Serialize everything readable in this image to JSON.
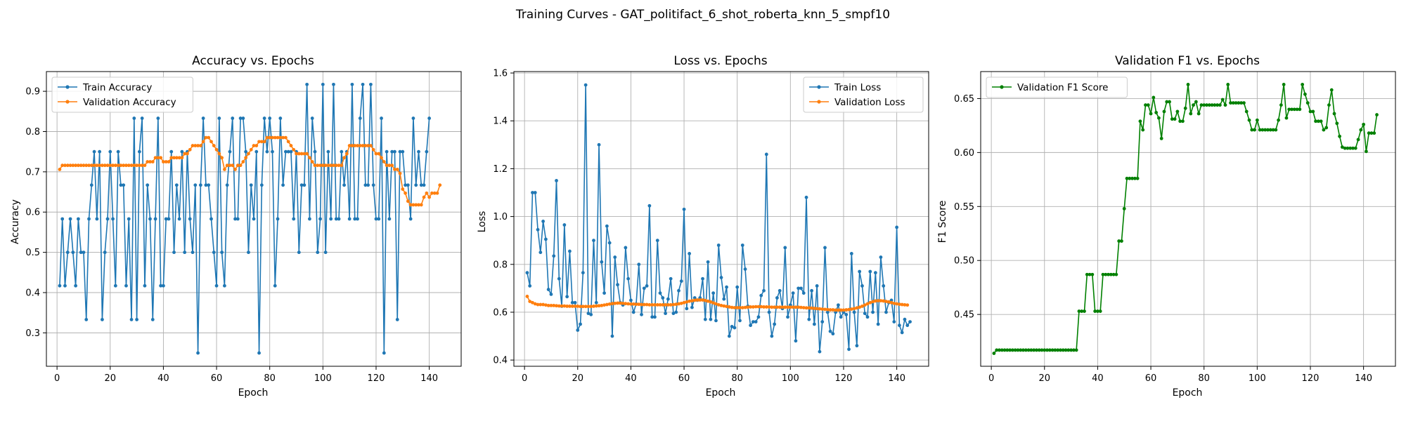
{
  "figure": {
    "suptitle": "Training Curves - GAT_politifact_6_shot_roberta_knn_5_smpf10"
  },
  "colors": {
    "blue": "#1f77b4",
    "orange": "#ff7f0e",
    "green": "#008000",
    "grid": "#b0b0b0"
  },
  "chart_data": [
    {
      "type": "line",
      "title": "Accuracy vs. Epochs",
      "xlabel": "Epoch",
      "ylabel": "Accuracy",
      "xlim": [
        -4,
        152
      ],
      "ylim": [
        0.217,
        0.949
      ],
      "xticks": [
        0,
        20,
        40,
        60,
        80,
        100,
        120,
        140
      ],
      "yticks": [
        0.3,
        0.4,
        0.5,
        0.6,
        0.7,
        0.8,
        0.9
      ],
      "ytick_decimals": 1,
      "grid": true,
      "legend": "upper left",
      "series": [
        {
          "name": "Train Accuracy",
          "color": "#1f77b4",
          "x_start": 1,
          "values": [
            0.417,
            0.583,
            0.417,
            0.5,
            0.583,
            0.5,
            0.417,
            0.583,
            0.5,
            0.5,
            0.333,
            0.583,
            0.667,
            0.75,
            0.583,
            0.75,
            0.333,
            0.5,
            0.583,
            0.75,
            0.583,
            0.417,
            0.75,
            0.667,
            0.667,
            0.417,
            0.583,
            0.333,
            0.833,
            0.333,
            0.75,
            0.833,
            0.417,
            0.667,
            0.583,
            0.333,
            0.583,
            0.833,
            0.417,
            0.417,
            0.583,
            0.583,
            0.75,
            0.5,
            0.667,
            0.583,
            0.75,
            0.5,
            0.75,
            0.583,
            0.5,
            0.667,
            0.25,
            0.667,
            0.833,
            0.667,
            0.667,
            0.583,
            0.5,
            0.417,
            0.833,
            0.5,
            0.417,
            0.667,
            0.75,
            0.833,
            0.583,
            0.583,
            0.833,
            0.833,
            0.75,
            0.5,
            0.667,
            0.583,
            0.75,
            0.25,
            0.667,
            0.833,
            0.75,
            0.833,
            0.75,
            0.417,
            0.583,
            0.833,
            0.667,
            0.75,
            0.75,
            0.75,
            0.583,
            0.75,
            0.5,
            0.667,
            0.667,
            0.917,
            0.583,
            0.833,
            0.75,
            0.5,
            0.583,
            0.917,
            0.5,
            0.75,
            0.583,
            0.917,
            0.583,
            0.583,
            0.75,
            0.667,
            0.75,
            0.583,
            0.917,
            0.583,
            0.583,
            0.833,
            0.917,
            0.667,
            0.667,
            0.917,
            0.667,
            0.583,
            0.583,
            0.833,
            0.25,
            0.75,
            0.583,
            0.75,
            0.75,
            0.333,
            0.75,
            0.75,
            0.667,
            0.667,
            0.583,
            0.833,
            0.667,
            0.75,
            0.667,
            0.667,
            0.75,
            0.833
          ]
        },
        {
          "name": "Validation Accuracy",
          "color": "#ff7f0e",
          "x_start": 1,
          "values": [
            0.706,
            0.716,
            0.716,
            0.716,
            0.716,
            0.716,
            0.716,
            0.716,
            0.716,
            0.716,
            0.716,
            0.716,
            0.716,
            0.716,
            0.716,
            0.716,
            0.716,
            0.716,
            0.716,
            0.716,
            0.716,
            0.716,
            0.716,
            0.716,
            0.716,
            0.716,
            0.716,
            0.716,
            0.716,
            0.716,
            0.716,
            0.716,
            0.716,
            0.725,
            0.725,
            0.725,
            0.735,
            0.735,
            0.735,
            0.725,
            0.725,
            0.725,
            0.735,
            0.735,
            0.735,
            0.735,
            0.735,
            0.745,
            0.745,
            0.755,
            0.765,
            0.765,
            0.765,
            0.765,
            0.775,
            0.785,
            0.785,
            0.775,
            0.765,
            0.755,
            0.745,
            0.735,
            0.706,
            0.716,
            0.716,
            0.716,
            0.706,
            0.716,
            0.716,
            0.725,
            0.735,
            0.745,
            0.755,
            0.765,
            0.765,
            0.775,
            0.775,
            0.775,
            0.785,
            0.785,
            0.785,
            0.785,
            0.785,
            0.785,
            0.785,
            0.785,
            0.775,
            0.765,
            0.755,
            0.745,
            0.745,
            0.745,
            0.745,
            0.745,
            0.735,
            0.725,
            0.716,
            0.716,
            0.716,
            0.716,
            0.716,
            0.716,
            0.716,
            0.716,
            0.716,
            0.716,
            0.716,
            0.735,
            0.745,
            0.765,
            0.765,
            0.765,
            0.765,
            0.765,
            0.765,
            0.765,
            0.765,
            0.765,
            0.755,
            0.745,
            0.745,
            0.735,
            0.725,
            0.716,
            0.716,
            0.716,
            0.706,
            0.706,
            0.696,
            0.657,
            0.647,
            0.627,
            0.618,
            0.618,
            0.618,
            0.618,
            0.618,
            0.637,
            0.647,
            0.637,
            0.647,
            0.647,
            0.647,
            0.667
          ]
        }
      ]
    },
    {
      "type": "line",
      "title": "Loss vs. Epochs",
      "xlabel": "Epoch",
      "ylabel": "Loss",
      "xlim": [
        -4,
        152
      ],
      "ylim": [
        0.374,
        1.606
      ],
      "xticks": [
        0,
        20,
        40,
        60,
        80,
        100,
        120,
        140
      ],
      "yticks": [
        0.4,
        0.6,
        0.8,
        1.0,
        1.2,
        1.4,
        1.6
      ],
      "ytick_decimals": 1,
      "grid": true,
      "legend": "upper right",
      "series": [
        {
          "name": "Train Loss",
          "color": "#1f77b4",
          "x_start": 1,
          "values": [
            0.765,
            0.71,
            1.1,
            1.1,
            0.945,
            0.85,
            0.98,
            0.905,
            0.695,
            0.675,
            0.835,
            1.15,
            0.74,
            0.625,
            0.965,
            0.665,
            0.855,
            0.64,
            0.64,
            0.525,
            0.55,
            0.765,
            1.55,
            0.595,
            0.59,
            0.9,
            0.64,
            1.3,
            0.81,
            0.68,
            0.96,
            0.89,
            0.5,
            0.83,
            0.715,
            0.64,
            0.63,
            0.87,
            0.74,
            0.65,
            0.6,
            0.635,
            0.8,
            0.59,
            0.7,
            0.71,
            1.045,
            0.58,
            0.58,
            0.9,
            0.68,
            0.66,
            0.595,
            0.655,
            0.74,
            0.595,
            0.6,
            0.69,
            0.73,
            1.03,
            0.615,
            0.845,
            0.62,
            0.66,
            0.65,
            0.66,
            0.74,
            0.57,
            0.81,
            0.57,
            0.68,
            0.565,
            0.88,
            0.745,
            0.655,
            0.705,
            0.5,
            0.54,
            0.535,
            0.705,
            0.565,
            0.88,
            0.78,
            0.625,
            0.545,
            0.56,
            0.56,
            0.58,
            0.67,
            0.69,
            1.26,
            0.6,
            0.5,
            0.55,
            0.66,
            0.69,
            0.615,
            0.87,
            0.58,
            0.63,
            0.68,
            0.48,
            0.7,
            0.7,
            0.68,
            1.08,
            0.57,
            0.69,
            0.55,
            0.71,
            0.435,
            0.56,
            0.87,
            0.6,
            0.52,
            0.51,
            0.6,
            0.63,
            0.58,
            0.6,
            0.59,
            0.445,
            0.845,
            0.6,
            0.46,
            0.77,
            0.71,
            0.595,
            0.58,
            0.77,
            0.6,
            0.765,
            0.55,
            0.83,
            0.71,
            0.6,
            0.64,
            0.65,
            0.56,
            0.955,
            0.545,
            0.515,
            0.57,
            0.545,
            0.56
          ]
        },
        {
          "name": "Validation Loss",
          "color": "#ff7f0e",
          "x_start": 1,
          "values": [
            0.666,
            0.645,
            0.64,
            0.635,
            0.632,
            0.632,
            0.632,
            0.63,
            0.628,
            0.628,
            0.628,
            0.627,
            0.626,
            0.626,
            0.626,
            0.625,
            0.625,
            0.625,
            0.625,
            0.625,
            0.624,
            0.624,
            0.624,
            0.624,
            0.624,
            0.625,
            0.626,
            0.627,
            0.628,
            0.63,
            0.632,
            0.634,
            0.636,
            0.637,
            0.638,
            0.638,
            0.637,
            0.636,
            0.635,
            0.634,
            0.634,
            0.633,
            0.633,
            0.632,
            0.632,
            0.632,
            0.631,
            0.631,
            0.631,
            0.631,
            0.631,
            0.631,
            0.631,
            0.631,
            0.631,
            0.632,
            0.633,
            0.635,
            0.637,
            0.64,
            0.643,
            0.646,
            0.648,
            0.65,
            0.651,
            0.651,
            0.651,
            0.649,
            0.646,
            0.643,
            0.639,
            0.635,
            0.631,
            0.628,
            0.626,
            0.624,
            0.622,
            0.62,
            0.619,
            0.619,
            0.619,
            0.619,
            0.62,
            0.621,
            0.622,
            0.622,
            0.623,
            0.623,
            0.623,
            0.622,
            0.622,
            0.622,
            0.621,
            0.621,
            0.621,
            0.621,
            0.621,
            0.621,
            0.621,
            0.621,
            0.621,
            0.621,
            0.621,
            0.62,
            0.619,
            0.618,
            0.618,
            0.617,
            0.616,
            0.615,
            0.614,
            0.613,
            0.612,
            0.611,
            0.61,
            0.61,
            0.609,
            0.609,
            0.609,
            0.609,
            0.61,
            0.611,
            0.613,
            0.615,
            0.618,
            0.621,
            0.625,
            0.63,
            0.635,
            0.64,
            0.644,
            0.647,
            0.648,
            0.648,
            0.647,
            0.645,
            0.643,
            0.64,
            0.637,
            0.635,
            0.633,
            0.632,
            0.631,
            0.63
          ]
        }
      ]
    },
    {
      "type": "line",
      "title": "Validation F1 vs. Epochs",
      "xlabel": "Epoch",
      "ylabel": "F1 Score",
      "xlim": [
        -4,
        152
      ],
      "ylim": [
        0.402,
        0.675
      ],
      "xticks": [
        0,
        20,
        40,
        60,
        80,
        100,
        120,
        140
      ],
      "yticks": [
        0.45,
        0.5,
        0.55,
        0.6,
        0.65
      ],
      "ytick_decimals": 2,
      "grid": true,
      "legend": "upper left",
      "series": [
        {
          "name": "Validation F1 Score",
          "color": "#008000",
          "x_start": 1,
          "values": [
            0.414,
            0.417,
            0.417,
            0.417,
            0.417,
            0.417,
            0.417,
            0.417,
            0.417,
            0.417,
            0.417,
            0.417,
            0.417,
            0.417,
            0.417,
            0.417,
            0.417,
            0.417,
            0.417,
            0.417,
            0.417,
            0.417,
            0.417,
            0.417,
            0.417,
            0.417,
            0.417,
            0.417,
            0.417,
            0.417,
            0.417,
            0.417,
            0.453,
            0.453,
            0.453,
            0.487,
            0.487,
            0.487,
            0.453,
            0.453,
            0.453,
            0.487,
            0.487,
            0.487,
            0.487,
            0.487,
            0.487,
            0.518,
            0.518,
            0.548,
            0.576,
            0.576,
            0.576,
            0.576,
            0.576,
            0.629,
            0.621,
            0.644,
            0.644,
            0.636,
            0.651,
            0.637,
            0.632,
            0.613,
            0.638,
            0.647,
            0.647,
            0.631,
            0.631,
            0.638,
            0.629,
            0.629,
            0.641,
            0.663,
            0.636,
            0.644,
            0.647,
            0.636,
            0.644,
            0.644,
            0.644,
            0.644,
            0.644,
            0.644,
            0.644,
            0.644,
            0.649,
            0.644,
            0.663,
            0.646,
            0.646,
            0.646,
            0.646,
            0.646,
            0.646,
            0.638,
            0.63,
            0.621,
            0.621,
            0.63,
            0.621,
            0.621,
            0.621,
            0.621,
            0.621,
            0.621,
            0.621,
            0.63,
            0.644,
            0.663,
            0.632,
            0.64,
            0.64,
            0.64,
            0.64,
            0.64,
            0.663,
            0.654,
            0.646,
            0.638,
            0.638,
            0.629,
            0.629,
            0.629,
            0.621,
            0.623,
            0.644,
            0.658,
            0.636,
            0.627,
            0.615,
            0.605,
            0.604,
            0.604,
            0.604,
            0.604,
            0.604,
            0.612,
            0.621,
            0.626,
            0.601,
            0.618,
            0.618,
            0.618,
            0.635
          ]
        }
      ]
    }
  ]
}
